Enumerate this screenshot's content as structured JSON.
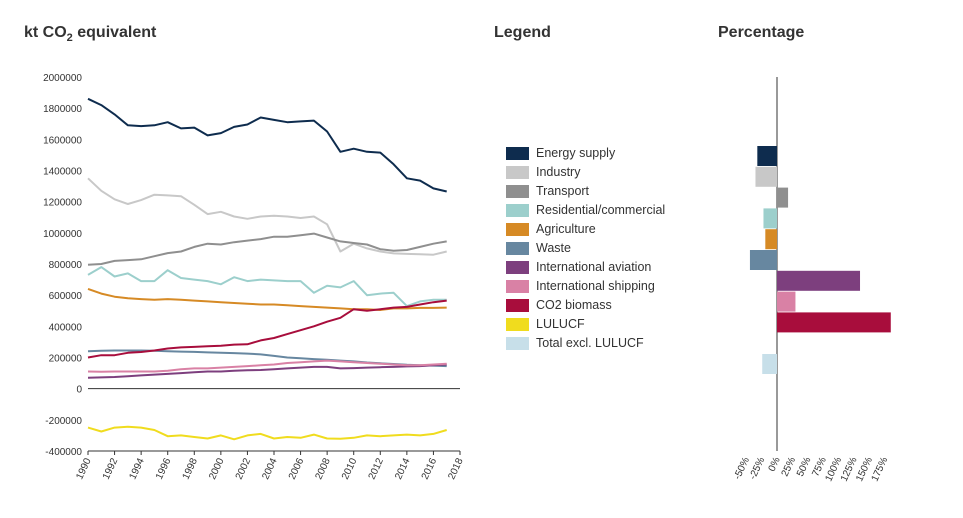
{
  "headings": {
    "left_prefix": "kt CO",
    "left_sub": "2",
    "left_suffix": " equivalent",
    "legend": "Legend",
    "percentage": "Percentage"
  },
  "chart_data": [
    {
      "type": "line",
      "title": "kt CO2 equivalent",
      "ylim": [
        -400000,
        2000000
      ],
      "y_ticks": [
        2000000,
        1800000,
        1600000,
        1400000,
        1200000,
        1000000,
        800000,
        600000,
        400000,
        200000,
        0,
        -200000,
        -400000
      ],
      "x_ticks": [
        1990,
        1992,
        1994,
        1996,
        1998,
        2000,
        2002,
        2004,
        2006,
        2008,
        2010,
        2012,
        2014,
        2016,
        2018
      ],
      "x": [
        1990,
        1991,
        1992,
        1993,
        1994,
        1995,
        1996,
        1997,
        1998,
        1999,
        2000,
        2001,
        2002,
        2003,
        2004,
        2005,
        2006,
        2007,
        2008,
        2009,
        2010,
        2011,
        2012,
        2013,
        2014,
        2015,
        2016,
        2017
      ],
      "series": [
        {
          "name": "Energy supply",
          "color": "#0e2c4e",
          "values": [
            1860000,
            1820000,
            1760000,
            1690000,
            1685000,
            1690000,
            1710000,
            1670000,
            1675000,
            1625000,
            1640000,
            1680000,
            1695000,
            1740000,
            1725000,
            1710000,
            1715000,
            1720000,
            1650000,
            1520000,
            1540000,
            1520000,
            1515000,
            1440000,
            1350000,
            1335000,
            1285000,
            1265000
          ]
        },
        {
          "name": "Industry",
          "color": "#c8c8c8",
          "values": [
            1350000,
            1270000,
            1215000,
            1185000,
            1210000,
            1245000,
            1240000,
            1235000,
            1180000,
            1120000,
            1135000,
            1105000,
            1090000,
            1105000,
            1110000,
            1105000,
            1095000,
            1105000,
            1055000,
            880000,
            930000,
            900000,
            880000,
            868000,
            865000,
            862000,
            860000,
            880000
          ]
        },
        {
          "name": "Transport",
          "color": "#8f8f8f",
          "values": [
            795000,
            800000,
            820000,
            825000,
            830000,
            850000,
            870000,
            880000,
            910000,
            930000,
            925000,
            940000,
            950000,
            960000,
            975000,
            975000,
            985000,
            995000,
            970000,
            945000,
            935000,
            925000,
            895000,
            885000,
            890000,
            910000,
            930000,
            945000
          ]
        },
        {
          "name": "Residential/commercial",
          "color": "#9ccfcc",
          "values": [
            730000,
            780000,
            720000,
            740000,
            690000,
            690000,
            760000,
            710000,
            700000,
            690000,
            670000,
            715000,
            690000,
            700000,
            695000,
            690000,
            690000,
            615000,
            660000,
            650000,
            690000,
            600000,
            610000,
            615000,
            530000,
            560000,
            570000,
            570000
          ]
        },
        {
          "name": "Agriculture",
          "color": "#d68a25",
          "values": [
            640000,
            610000,
            590000,
            580000,
            575000,
            570000,
            575000,
            570000,
            565000,
            560000,
            555000,
            550000,
            545000,
            540000,
            540000,
            535000,
            530000,
            525000,
            520000,
            515000,
            510000,
            510000,
            505000,
            515000,
            515000,
            518000,
            518000,
            520000
          ]
        },
        {
          "name": "Waste",
          "color": "#6787a0",
          "values": [
            240000,
            243000,
            245000,
            245000,
            245000,
            243000,
            240000,
            238000,
            236000,
            233000,
            230000,
            228000,
            225000,
            220000,
            210000,
            200000,
            195000,
            190000,
            185000,
            180000,
            175000,
            168000,
            163000,
            158000,
            153000,
            150000,
            148000,
            145000
          ]
        },
        {
          "name": "International aviation",
          "color": "#7d3f7e",
          "values": [
            70000,
            72000,
            75000,
            80000,
            85000,
            90000,
            95000,
            100000,
            105000,
            110000,
            110000,
            115000,
            118000,
            120000,
            125000,
            130000,
            135000,
            140000,
            140000,
            130000,
            132000,
            135000,
            138000,
            140000,
            143000,
            145000,
            150000,
            155000
          ]
        },
        {
          "name": "International shipping",
          "color": "#d981a5",
          "values": [
            110000,
            108000,
            110000,
            110000,
            110000,
            110000,
            115000,
            125000,
            130000,
            130000,
            135000,
            140000,
            145000,
            150000,
            155000,
            165000,
            170000,
            175000,
            180000,
            175000,
            170000,
            165000,
            160000,
            155000,
            150000,
            150000,
            155000,
            160000
          ]
        },
        {
          "name": "CO2 biomass",
          "color": "#a80d3c",
          "values": [
            200000,
            215000,
            215000,
            230000,
            235000,
            245000,
            258000,
            265000,
            268000,
            272000,
            275000,
            283000,
            285000,
            310000,
            325000,
            350000,
            375000,
            400000,
            430000,
            455000,
            510000,
            500000,
            510000,
            520000,
            525000,
            540000,
            555000,
            565000
          ]
        },
        {
          "name": "LULUCF",
          "color": "#f0dc1e",
          "values": [
            -250000,
            -275000,
            -250000,
            -245000,
            -250000,
            -265000,
            -305000,
            -300000,
            -310000,
            -320000,
            -300000,
            -325000,
            -300000,
            -290000,
            -320000,
            -310000,
            -315000,
            -295000,
            -320000,
            -322000,
            -315000,
            -300000,
            -305000,
            -300000,
            -295000,
            -300000,
            -290000,
            -265000
          ]
        }
      ]
    },
    {
      "type": "bar",
      "orientation": "horizontal",
      "title": "Percentage",
      "xlim": [
        -50,
        175
      ],
      "x_ticks": [
        "-50%",
        "-25%",
        "0%",
        "25%",
        "50%",
        "75%",
        "100%",
        "125%",
        "150%",
        "175%"
      ],
      "x_tick_values": [
        -50,
        -25,
        0,
        25,
        50,
        75,
        100,
        125,
        150,
        175
      ],
      "categories": [
        "Energy supply",
        "Industry",
        "Transport",
        "Residential/commercial",
        "Agriculture",
        "Waste",
        "International aviation",
        "International shipping",
        "CO2 biomass",
        "LULUCF",
        "Total excl. LULUCF"
      ],
      "values": [
        -32,
        -35,
        18,
        -22,
        -19,
        -44,
        135,
        30,
        185,
        0,
        -24
      ],
      "colors": [
        "#0e2c4e",
        "#c8c8c8",
        "#8f8f8f",
        "#9ccfcc",
        "#d68a25",
        "#6787a0",
        "#7d3f7e",
        "#d981a5",
        "#a80d3c",
        "#f0dc1e",
        "#c7dfe9"
      ]
    }
  ],
  "legend": [
    {
      "label": "Energy supply",
      "color": "#0e2c4e"
    },
    {
      "label": "Industry",
      "color": "#c8c8c8"
    },
    {
      "label": "Transport",
      "color": "#8f8f8f"
    },
    {
      "label": "Residential/commercial",
      "color": "#9ccfcc"
    },
    {
      "label": "Agriculture",
      "color": "#d68a25"
    },
    {
      "label": "Waste",
      "color": "#6787a0"
    },
    {
      "label": "International aviation",
      "color": "#7d3f7e"
    },
    {
      "label": "International shipping",
      "color": "#d981a5"
    },
    {
      "label": "CO2 biomass",
      "color": "#a80d3c"
    },
    {
      "label": "LULUCF",
      "color": "#f0dc1e"
    },
    {
      "label": "Total excl. LULUCF",
      "color": "#c7dfe9"
    }
  ]
}
